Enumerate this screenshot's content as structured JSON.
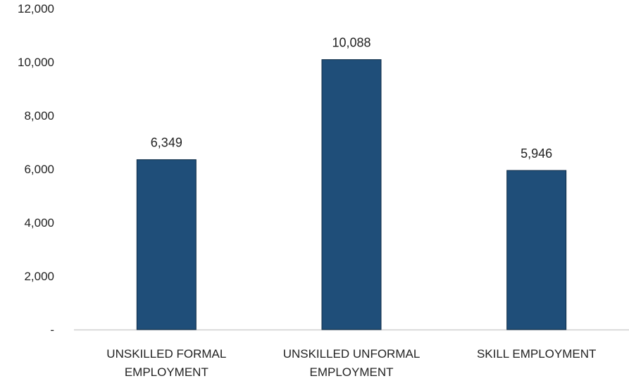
{
  "chart_data": {
    "type": "bar",
    "categories": [
      [
        "UNSKILLED FORMAL",
        "EMPLOYMENT"
      ],
      [
        "UNSKILLED UNFORMAL",
        "EMPLOYMENT"
      ],
      [
        "SKILL EMPLOYMENT"
      ]
    ],
    "values": [
      6349,
      10088,
      5946
    ],
    "data_labels": [
      "6,349",
      "10,088",
      "5,946"
    ],
    "title": "",
    "xlabel": "",
    "ylabel": "",
    "ylim": [
      0,
      12000
    ],
    "yticks": [
      0,
      2000,
      4000,
      6000,
      8000,
      10000,
      12000
    ],
    "ytick_labels": [
      "-",
      "2,000",
      "4,000",
      "6,000",
      "8,000",
      "10,000",
      "12,000"
    ],
    "grid": false,
    "legend": "none",
    "colors": {
      "bar": "#1f4e79",
      "bar_edge": "#0d2a45",
      "axis": "#d0d0d0"
    }
  }
}
